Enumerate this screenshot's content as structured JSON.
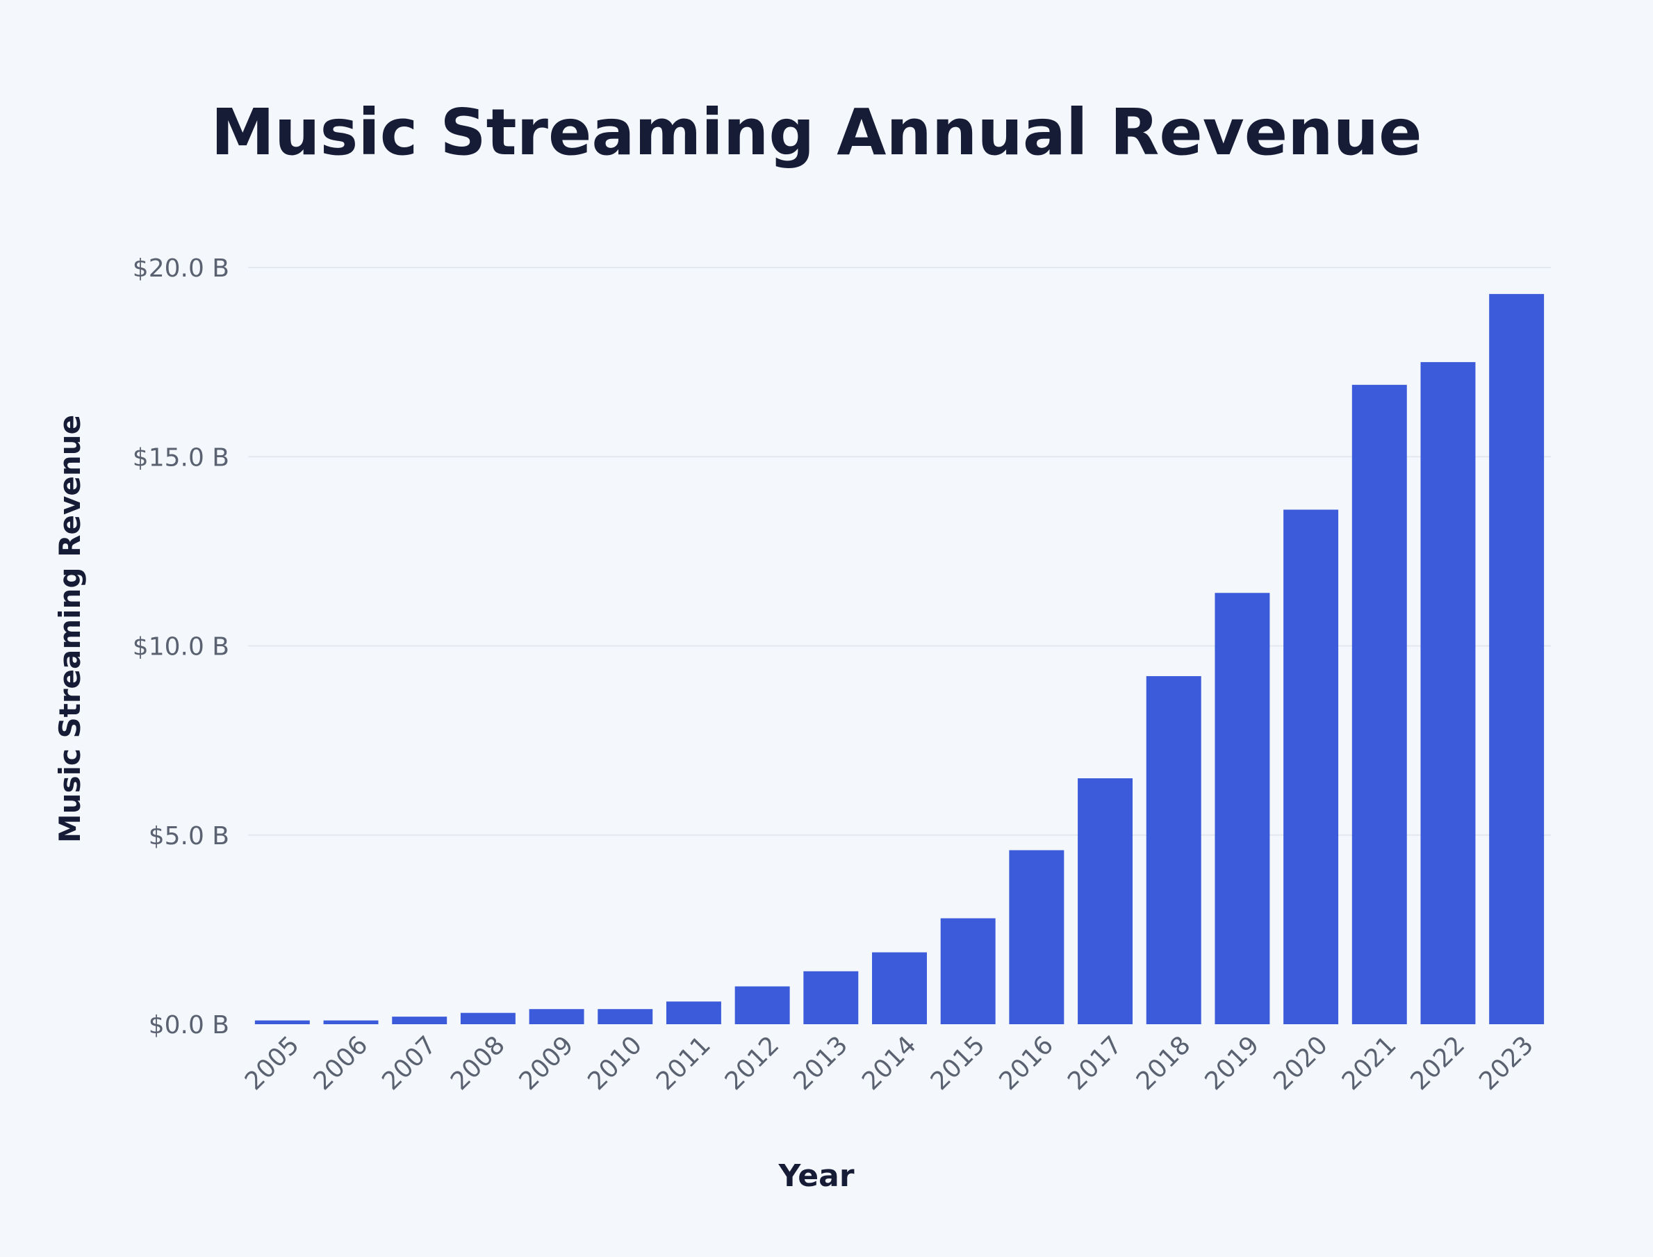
{
  "chart_data": {
    "type": "bar",
    "title": "Music Streaming Annual Revenue",
    "xlabel": "Year",
    "ylabel": "Music Streaming Revenue",
    "categories": [
      "2005",
      "2006",
      "2007",
      "2008",
      "2009",
      "2010",
      "2011",
      "2012",
      "2013",
      "2014",
      "2015",
      "2016",
      "2017",
      "2018",
      "2019",
      "2020",
      "2021",
      "2022",
      "2023"
    ],
    "values": [
      0.1,
      0.1,
      0.2,
      0.3,
      0.4,
      0.4,
      0.6,
      1.0,
      1.4,
      1.9,
      2.8,
      4.6,
      6.5,
      9.2,
      11.4,
      13.6,
      16.9,
      17.5,
      19.3
    ],
    "yticks": [
      0,
      5,
      10,
      15,
      20
    ],
    "ytick_labels": [
      "$0.0 B",
      "$5.0 B",
      "$10.0 B",
      "$15.0 B",
      "$20.0 B"
    ],
    "ylim": [
      0,
      20
    ],
    "grid": true,
    "bar_color": "#3b5bdb",
    "grid_color": "#e3e8ee",
    "background": "#f4f8fc"
  }
}
